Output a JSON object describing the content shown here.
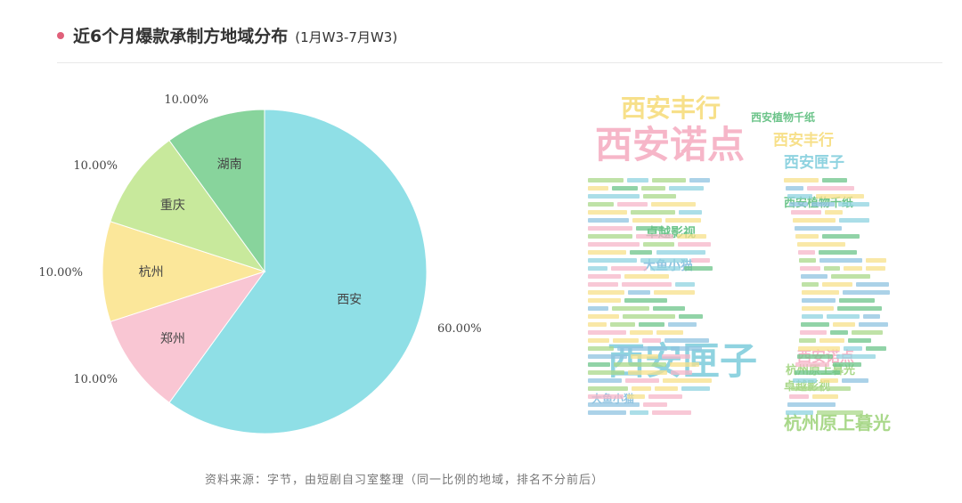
{
  "header": {
    "title": "近6个月爆款承制方地域分布",
    "subtitle": "(1月W3-7月W3)",
    "accent": "#e0607a"
  },
  "chart_data": [
    {
      "type": "pie",
      "categories": [
        "西安",
        "郑州",
        "杭州",
        "重庆",
        "湖南"
      ],
      "values": [
        60,
        10,
        10,
        10,
        10
      ],
      "labels": [
        "60.00%",
        "10.00%",
        "10.00%",
        "10.00%",
        "10.00%"
      ],
      "colors": [
        "#8fdfe6",
        "#f9c6d3",
        "#fbe79a",
        "#c8e99c",
        "#88d49c"
      ],
      "start": "top",
      "direction": "clockwise"
    },
    {
      "type": "wordcloud",
      "shape": "D",
      "words": [
        {
          "text": "西安诺点",
          "weight": 10,
          "color": "#f6b6c8"
        },
        {
          "text": "西安匣子",
          "weight": 10,
          "color": "#8fd3e0"
        },
        {
          "text": "西安丰行",
          "weight": 7,
          "color": "#f7e08a"
        },
        {
          "text": "杭州原上暮光",
          "weight": 5,
          "color": "#a9d88a"
        },
        {
          "text": "西安匣子",
          "weight": 4,
          "color": "#8fd3e0"
        },
        {
          "text": "西安丰行",
          "weight": 4,
          "color": "#f7e08a"
        },
        {
          "text": "西安植物千纸",
          "weight": 3,
          "color": "#6cc48a"
        },
        {
          "text": "西安植物千纸",
          "weight": 3,
          "color": "#6cc48a"
        },
        {
          "text": "大鱼小猫",
          "weight": 3,
          "color": "#8fc3e0"
        },
        {
          "text": "大鱼小猫",
          "weight": 3,
          "color": "#8fc3e0"
        },
        {
          "text": "杭州原上暮光",
          "weight": 3,
          "color": "#a9d88a"
        },
        {
          "text": "西安诺点",
          "weight": 3,
          "color": "#f6b6c8"
        },
        {
          "text": "卓越影视",
          "weight": 3,
          "color": "#6cc48a"
        },
        {
          "text": "卓越影视",
          "weight": 3,
          "color": "#a9d88a"
        }
      ]
    }
  ],
  "footer": {
    "source": "资料来源：字节，由短剧自习室整理（同一比例的地域，排名不分前后）"
  }
}
